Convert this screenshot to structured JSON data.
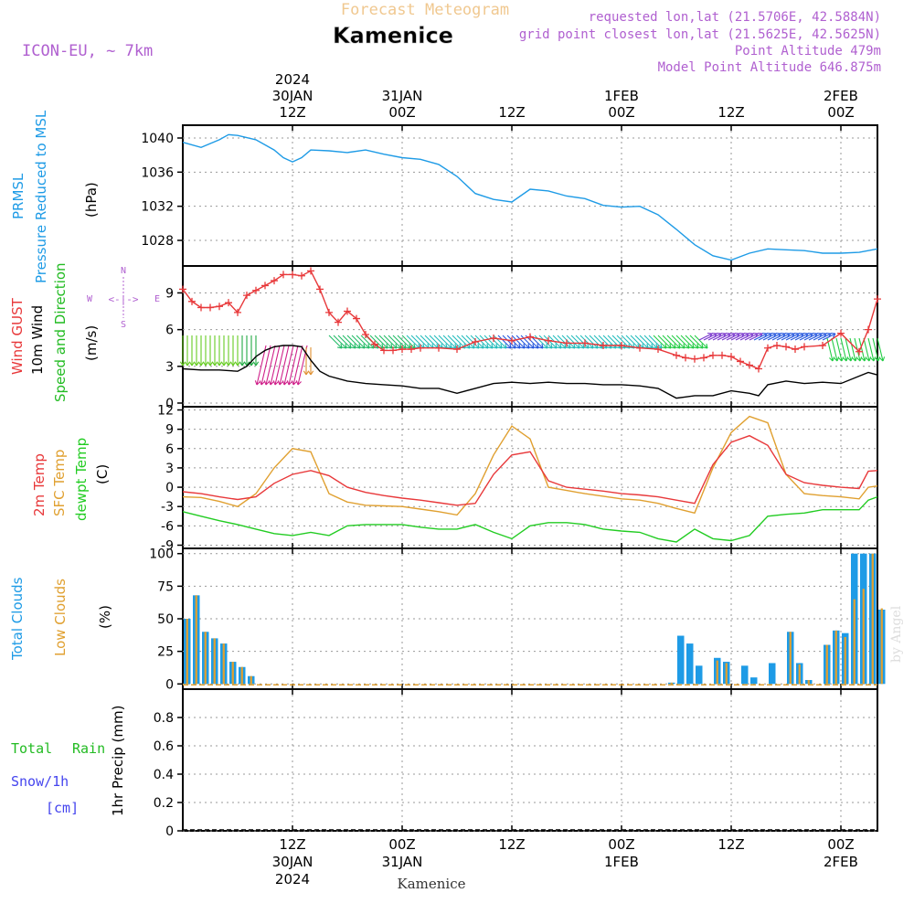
{
  "header": {
    "product": "Forecast Meteogram",
    "location": "Kamenice",
    "model": "ICON-EU, ~ 7km",
    "requested": "requested lon,lat (21.5706E, 42.5884N)",
    "grid_point": "grid point closest lon,lat (21.5625E, 42.5625N)",
    "point_altitude": "Point Altitude 479m",
    "model_altitude": "Model Point Altitude 646.875m",
    "credit": "by Angel",
    "footer_location": "Kamenice"
  },
  "colors": {
    "pressure": "#1e9be6",
    "gust": "#e8383a",
    "wind": "#000000",
    "direction_label": "#22bb22",
    "temp2m": "#e8383a",
    "sfc_temp": "#e0a030",
    "dewpt": "#22cc22",
    "total_clouds": "#1e9be6",
    "low_clouds": "#e0a030",
    "rain_label": "#22bb22",
    "snow_label": "#4444ee",
    "header_purple": "#b060d0",
    "product_title": "#f0c890"
  },
  "time_axis": {
    "top_ticks": [
      {
        "h": 12,
        "lines": [
          "2024",
          "30JAN",
          "12Z"
        ]
      },
      {
        "h": 24,
        "lines": [
          "31JAN",
          "00Z"
        ]
      },
      {
        "h": 36,
        "lines": [
          "12Z"
        ]
      },
      {
        "h": 48,
        "lines": [
          "1FEB",
          "00Z"
        ]
      },
      {
        "h": 60,
        "lines": [
          "12Z"
        ]
      },
      {
        "h": 72,
        "lines": [
          "2FEB",
          "00Z"
        ]
      }
    ],
    "bottom_ticks": [
      {
        "h": 12,
        "lines": [
          "12Z",
          "30JAN",
          "2024"
        ]
      },
      {
        "h": 24,
        "lines": [
          "00Z",
          "31JAN"
        ]
      },
      {
        "h": 36,
        "lines": [
          "12Z"
        ]
      },
      {
        "h": 48,
        "lines": [
          "00Z",
          "1FEB"
        ]
      },
      {
        "h": 60,
        "lines": [
          "12Z"
        ]
      },
      {
        "h": 72,
        "lines": [
          "00Z",
          "2FEB"
        ]
      }
    ]
  },
  "panels": {
    "pressure": {
      "labels": [
        "PRMSL",
        "Pressure Reduced to MSL"
      ],
      "unit": "(hPa)",
      "ticks": [
        "1028",
        "1032",
        "1036",
        "1040"
      ]
    },
    "wind": {
      "labels": [
        "Wind GUST",
        "10m Wind",
        "Speed and Direction"
      ],
      "unit": "(m/s)",
      "ticks": [
        "0",
        "3",
        "6",
        "9"
      ],
      "compass": {
        "n": "N",
        "s": "S",
        "e": "E",
        "w": "W"
      }
    },
    "temp": {
      "labels": [
        "2m Temp",
        "SFC Temp",
        "dewpt Temp"
      ],
      "unit": "(C)",
      "ticks": [
        "-9",
        "-6",
        "-3",
        "0",
        "3",
        "6",
        "9",
        "12"
      ]
    },
    "clouds": {
      "labels": [
        "Total Clouds",
        "Low Clouds"
      ],
      "unit": "(%)",
      "ticks": [
        "0",
        "25",
        "50",
        "75",
        "100"
      ]
    },
    "precip": {
      "labels": [
        "Total",
        "Rain",
        "Snow/1h",
        "[cm]"
      ],
      "unit": "1hr Precip (mm)",
      "ticks": [
        "0",
        "0.2",
        "0.4",
        "0.6",
        "0.8"
      ]
    }
  },
  "chart_data": [
    {
      "type": "line",
      "title": "PRMSL Pressure Reduced to MSL",
      "ylabel": "(hPa)",
      "ylim": [
        1025,
        1041.5
      ],
      "x_unit": "hours from 30JAN 00Z",
      "grid": true,
      "series": [
        {
          "name": "PRMSL",
          "x": [
            0,
            2,
            4,
            5,
            6,
            8,
            10,
            11,
            12,
            13,
            14,
            16,
            18,
            20,
            22,
            24,
            26,
            28,
            30,
            32,
            34,
            36,
            38,
            40,
            42,
            44,
            46,
            48,
            50,
            52,
            54,
            56,
            58,
            60,
            62,
            64,
            66,
            68,
            70,
            72,
            74,
            76
          ],
          "y": [
            1039.5,
            1038.9,
            1039.8,
            1040.4,
            1040.3,
            1039.8,
            1038.6,
            1037.7,
            1037.2,
            1037.7,
            1038.6,
            1038.5,
            1038.3,
            1038.6,
            1038.1,
            1037.7,
            1037.5,
            1036.9,
            1035.5,
            1033.5,
            1032.8,
            1032.5,
            1034.0,
            1033.8,
            1033.2,
            1032.9,
            1032.1,
            1031.9,
            1032.0,
            1031.0,
            1029.3,
            1027.5,
            1026.2,
            1025.7,
            1026.5,
            1027.0,
            1026.9,
            1026.8,
            1026.5,
            1026.5,
            1026.6,
            1027.0
          ]
        }
      ]
    },
    {
      "type": "line",
      "title": "Wind GUST / 10m Wind",
      "ylabel": "(m/s)",
      "ylim": [
        -0.3,
        11.2
      ],
      "x_unit": "hours from 30JAN 00Z",
      "grid": true,
      "series": [
        {
          "name": "Wind GUST",
          "x": [
            0,
            1,
            2,
            3,
            4,
            5,
            6,
            7,
            8,
            9,
            10,
            11,
            12,
            13,
            14,
            15,
            16,
            17,
            18,
            19,
            20,
            21,
            22,
            23,
            24,
            25,
            26,
            28,
            30,
            32,
            34,
            36,
            38,
            40,
            42,
            44,
            46,
            48,
            50,
            52,
            54,
            55,
            56,
            57,
            58,
            59,
            60,
            61,
            62,
            63,
            64,
            65,
            66,
            67,
            68,
            70,
            72,
            74,
            75,
            76
          ],
          "y": [
            9.3,
            8.3,
            7.8,
            7.8,
            7.9,
            8.2,
            7.4,
            8.8,
            9.2,
            9.6,
            10.0,
            10.5,
            10.5,
            10.4,
            10.8,
            9.3,
            7.4,
            6.6,
            7.5,
            6.9,
            5.6,
            4.8,
            4.3,
            4.3,
            4.4,
            4.4,
            4.5,
            4.5,
            4.4,
            5.0,
            5.3,
            5.1,
            5.4,
            5.1,
            4.9,
            4.9,
            4.7,
            4.7,
            4.5,
            4.4,
            3.9,
            3.7,
            3.6,
            3.7,
            3.9,
            3.9,
            3.8,
            3.4,
            3.1,
            2.8,
            4.5,
            4.7,
            4.6,
            4.4,
            4.6,
            4.7,
            5.7,
            4.2,
            6.0,
            8.5
          ]
        },
        {
          "name": "10m Wind",
          "x": [
            0,
            2,
            4,
            6,
            7,
            8,
            9,
            10,
            11,
            12,
            13,
            14,
            15,
            16,
            18,
            20,
            22,
            24,
            26,
            28,
            30,
            32,
            34,
            36,
            38,
            40,
            42,
            44,
            46,
            48,
            50,
            52,
            54,
            55,
            56,
            58,
            60,
            62,
            63,
            64,
            66,
            68,
            70,
            72,
            74,
            75,
            76
          ],
          "y": [
            2.8,
            2.7,
            2.7,
            2.6,
            3.0,
            3.8,
            4.3,
            4.6,
            4.7,
            4.7,
            4.6,
            3.5,
            2.6,
            2.2,
            1.8,
            1.6,
            1.5,
            1.4,
            1.2,
            1.2,
            0.8,
            1.2,
            1.6,
            1.7,
            1.6,
            1.7,
            1.6,
            1.6,
            1.5,
            1.5,
            1.4,
            1.2,
            0.4,
            0.5,
            0.6,
            0.6,
            1.0,
            0.8,
            0.6,
            1.5,
            1.8,
            1.6,
            1.7,
            1.6,
            2.2,
            2.5,
            2.3
          ]
        }
      ]
    },
    {
      "type": "line",
      "title": "2m Temp / SFC Temp / dewpt Temp",
      "ylabel": "(C)",
      "ylim": [
        -9.5,
        12.5
      ],
      "x_unit": "hours from 30JAN 00Z",
      "grid": true,
      "series": [
        {
          "name": "2m Temp",
          "x": [
            0,
            2,
            4,
            6,
            8,
            10,
            12,
            14,
            16,
            18,
            20,
            22,
            24,
            26,
            28,
            30,
            32,
            34,
            36,
            38,
            40,
            42,
            44,
            46,
            48,
            50,
            52,
            54,
            56,
            58,
            60,
            62,
            64,
            66,
            68,
            70,
            72,
            74,
            75,
            76
          ],
          "y": [
            -0.7,
            -1.0,
            -1.5,
            -1.9,
            -1.5,
            0.6,
            2.0,
            2.6,
            1.8,
            0.0,
            -0.8,
            -1.3,
            -1.7,
            -2.0,
            -2.4,
            -2.8,
            -2.5,
            2.0,
            5.0,
            5.5,
            1.0,
            0.0,
            -0.3,
            -0.6,
            -1.0,
            -1.2,
            -1.5,
            -2.0,
            -2.5,
            3.5,
            7.0,
            8.0,
            6.5,
            2.0,
            0.7,
            0.3,
            0.0,
            -0.2,
            2.5,
            2.6
          ]
        },
        {
          "name": "SFC Temp",
          "x": [
            0,
            2,
            4,
            6,
            8,
            10,
            12,
            14,
            16,
            18,
            20,
            22,
            24,
            26,
            28,
            30,
            32,
            34,
            36,
            38,
            40,
            42,
            44,
            46,
            48,
            50,
            52,
            54,
            56,
            58,
            60,
            62,
            64,
            66,
            68,
            70,
            72,
            74,
            75,
            76
          ],
          "y": [
            -1.5,
            -1.6,
            -2.2,
            -3.0,
            -1.0,
            3.0,
            6.0,
            5.5,
            -1.0,
            -2.3,
            -2.8,
            -2.9,
            -3.0,
            -3.4,
            -3.8,
            -4.3,
            -1.0,
            5.0,
            9.5,
            7.5,
            0.0,
            -0.5,
            -1.0,
            -1.4,
            -1.8,
            -2.0,
            -2.5,
            -3.3,
            -4.0,
            3.0,
            8.5,
            11.0,
            10.0,
            2.0,
            -1.0,
            -1.3,
            -1.5,
            -1.8,
            0.0,
            0.2
          ]
        },
        {
          "name": "dewpt Temp",
          "x": [
            0,
            2,
            4,
            6,
            8,
            10,
            12,
            14,
            16,
            18,
            20,
            22,
            24,
            26,
            28,
            30,
            32,
            34,
            36,
            38,
            40,
            42,
            44,
            46,
            48,
            50,
            52,
            54,
            56,
            58,
            60,
            62,
            64,
            66,
            68,
            70,
            72,
            74,
            75,
            76
          ],
          "y": [
            -3.8,
            -4.5,
            -5.2,
            -5.8,
            -6.5,
            -7.2,
            -7.5,
            -7.0,
            -7.5,
            -6.0,
            -5.8,
            -5.8,
            -5.8,
            -6.2,
            -6.5,
            -6.5,
            -5.8,
            -7.0,
            -8.0,
            -6.0,
            -5.5,
            -5.5,
            -5.8,
            -6.5,
            -6.8,
            -7.0,
            -8.0,
            -8.5,
            -6.5,
            -8.0,
            -8.3,
            -7.5,
            -4.5,
            -4.2,
            -4.0,
            -3.5,
            -3.5,
            -3.5,
            -2.0,
            -1.5
          ]
        }
      ]
    },
    {
      "type": "bar",
      "title": "Total Clouds / Low Clouds",
      "ylabel": "(%)",
      "ylim": [
        -4,
        104
      ],
      "x_unit": "hours from 30JAN 00Z",
      "grid": true,
      "x": [
        0,
        1,
        2,
        3,
        4,
        5,
        6,
        7,
        53,
        54,
        55,
        56,
        58,
        59,
        61,
        62,
        64,
        66,
        67,
        68,
        70,
        71,
        72,
        73,
        74,
        75,
        76
      ],
      "series": [
        {
          "name": "Total Clouds",
          "values": [
            50,
            68,
            40,
            35,
            31,
            17,
            13,
            6,
            1,
            37,
            31,
            14,
            20,
            17,
            14,
            5,
            16,
            40,
            16,
            3,
            30,
            41,
            39,
            100,
            100,
            100,
            57
          ]
        },
        {
          "name": "Low Clouds",
          "values": [
            50,
            68,
            40,
            35,
            31,
            17,
            13,
            6,
            1,
            0,
            0,
            0,
            18,
            16,
            0,
            0,
            0,
            40,
            15,
            3,
            30,
            41,
            36,
            65,
            73,
            100,
            58
          ]
        }
      ]
    },
    {
      "type": "bar",
      "title": "1hr Precip (mm)",
      "ylabel": "1hr Precip (mm)",
      "ylim": [
        0,
        1.0
      ],
      "x_unit": "hours from 30JAN 00Z",
      "grid": true,
      "series": [
        {
          "name": "Total Rain",
          "values": []
        },
        {
          "name": "Snow/1h [cm]",
          "values": []
        }
      ]
    }
  ]
}
